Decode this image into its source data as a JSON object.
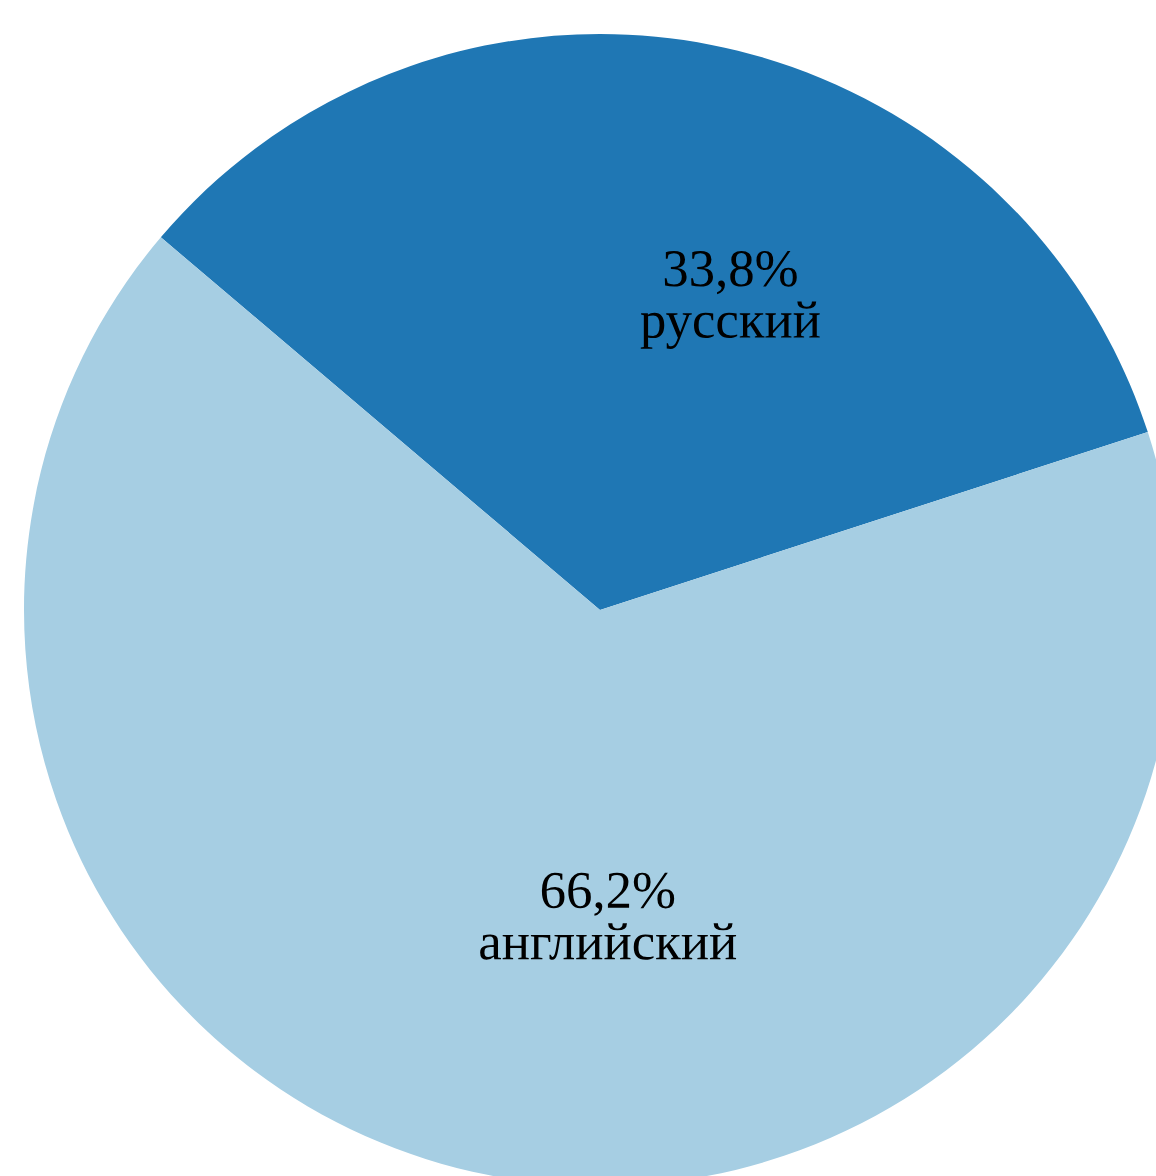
{
  "chart_data": {
    "type": "pie",
    "categories": [
      "русский",
      "английский"
    ],
    "values": [
      33.8,
      66.2
    ],
    "colors": [
      "#1f77b4",
      "#a6cee3"
    ],
    "value_labels": [
      "33,8%",
      "66,2%"
    ]
  }
}
